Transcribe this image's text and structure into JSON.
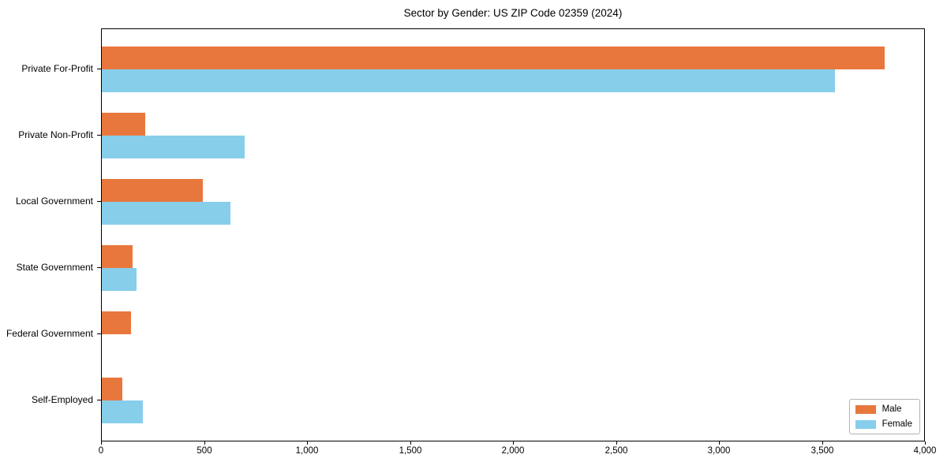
{
  "title": "Sector by Gender: US ZIP Code 02359 (2024)",
  "chart_data": {
    "type": "bar",
    "orientation": "horizontal",
    "title": "Sector by Gender: US ZIP Code 02359 (2024)",
    "xlabel": "",
    "ylabel": "",
    "categories": [
      "Private For-Profit",
      "Private Non-Profit",
      "Local Government",
      "State Government",
      "Federal Government",
      "Self-Employed"
    ],
    "series": [
      {
        "name": "Male",
        "color": "#E8773D",
        "values": [
          3800,
          210,
          490,
          150,
          140,
          100
        ]
      },
      {
        "name": "Female",
        "color": "#87CEEB",
        "values": [
          3560,
          695,
          625,
          170,
          0,
          200
        ]
      }
    ],
    "xlim": [
      0,
      4000
    ],
    "xticks": [
      0,
      500,
      1000,
      1500,
      2000,
      2500,
      3000,
      3500,
      4000
    ],
    "xtick_labels": [
      "0",
      "500",
      "1,000",
      "1,500",
      "2,000",
      "2,500",
      "3,000",
      "3,500",
      "4,000"
    ],
    "grid": false,
    "legend_position": "lower right",
    "axis_color": "#000000"
  }
}
